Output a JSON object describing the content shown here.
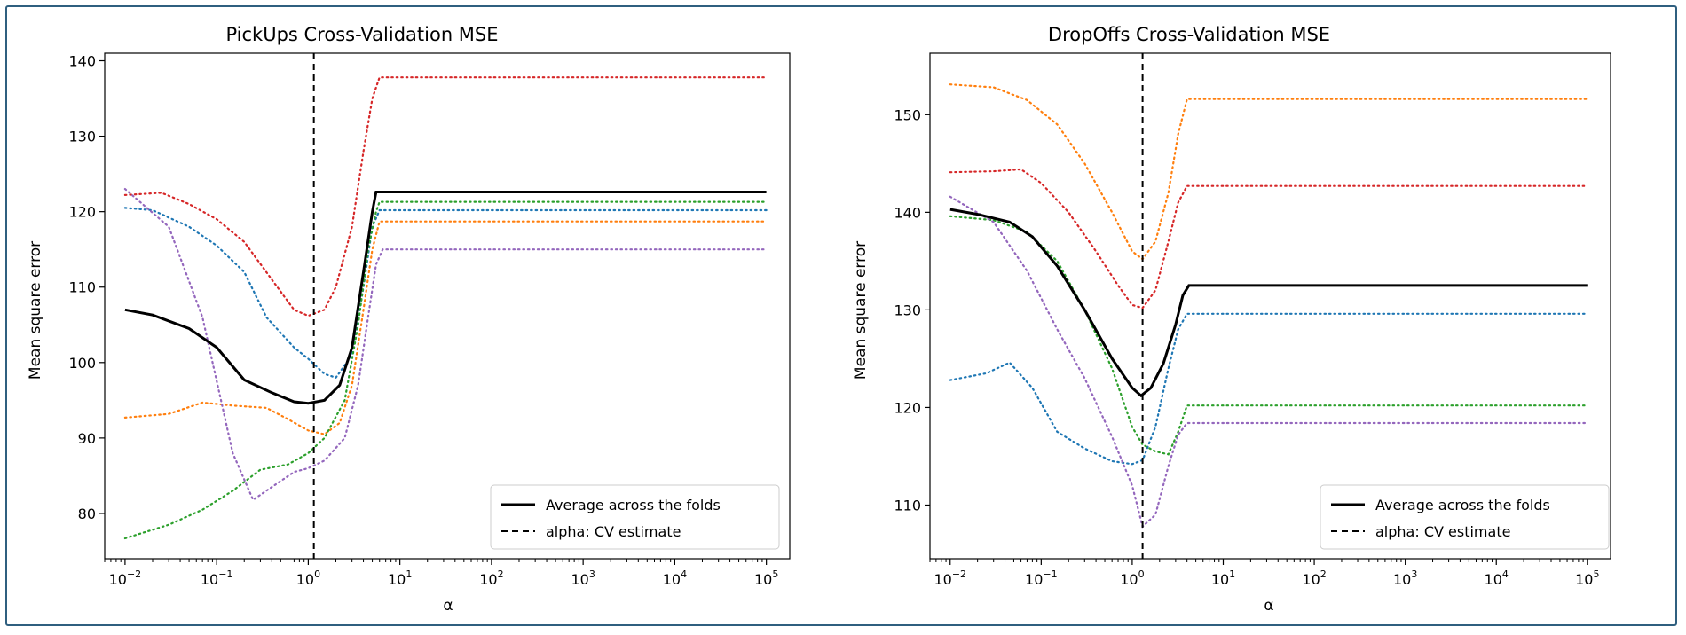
{
  "chart_data": [
    {
      "type": "line",
      "title": "PickUps Cross-Validation MSE",
      "xlabel": "α",
      "ylabel": "Mean square error",
      "xscale": "log",
      "xlim": [
        0.006,
        180000
      ],
      "ylim": [
        74,
        141
      ],
      "xticks": [
        {
          "base": "10",
          "exp": "−2",
          "value": 0.01
        },
        {
          "base": "10",
          "exp": "−1",
          "value": 0.1
        },
        {
          "base": "10",
          "exp": "0",
          "value": 1
        },
        {
          "base": "10",
          "exp": "1",
          "value": 10
        },
        {
          "base": "10",
          "exp": "2",
          "value": 100
        },
        {
          "base": "10",
          "exp": "3",
          "value": 1000
        },
        {
          "base": "10",
          "exp": "4",
          "value": 10000
        },
        {
          "base": "10",
          "exp": "5",
          "value": 100000
        }
      ],
      "yticks": [
        80,
        90,
        100,
        110,
        120,
        130,
        140
      ],
      "grid": false,
      "legend_position": "bottom-right",
      "legend": [
        "Average across the folds",
        "alpha: CV estimate"
      ],
      "cv_alpha": 1.15,
      "average": {
        "color": "#000000",
        "points": [
          [
            0.01,
            107
          ],
          [
            0.02,
            106.3
          ],
          [
            0.05,
            104.5
          ],
          [
            0.1,
            102
          ],
          [
            0.2,
            97.7
          ],
          [
            0.4,
            96.0
          ],
          [
            0.7,
            94.8
          ],
          [
            1,
            94.6
          ],
          [
            1.5,
            95.0
          ],
          [
            2.2,
            97.0
          ],
          [
            3,
            102
          ],
          [
            4,
            112
          ],
          [
            5,
            120
          ],
          [
            5.5,
            122.6
          ],
          [
            100000,
            122.6
          ]
        ]
      },
      "folds": [
        {
          "color": "#1f77b4",
          "points": [
            [
              0.01,
              120.5
            ],
            [
              0.02,
              120.2
            ],
            [
              0.05,
              118
            ],
            [
              0.1,
              115.5
            ],
            [
              0.2,
              112
            ],
            [
              0.35,
              106
            ],
            [
              0.7,
              102
            ],
            [
              1,
              100.5
            ],
            [
              1.5,
              98.5
            ],
            [
              2,
              98
            ],
            [
              3,
              101
            ],
            [
              4,
              110
            ],
            [
              5,
              118
            ],
            [
              6,
              120.2
            ],
            [
              100000,
              120.2
            ]
          ]
        },
        {
          "color": "#ff7f0e",
          "points": [
            [
              0.01,
              92.7
            ],
            [
              0.03,
              93.2
            ],
            [
              0.07,
              94.7
            ],
            [
              0.15,
              94.3
            ],
            [
              0.35,
              94.0
            ],
            [
              0.6,
              92.5
            ],
            [
              1,
              91.0
            ],
            [
              1.5,
              90.5
            ],
            [
              2.2,
              92
            ],
            [
              3,
              97
            ],
            [
              4,
              107
            ],
            [
              5,
              115
            ],
            [
              6,
              118.7
            ],
            [
              100000,
              118.7
            ]
          ]
        },
        {
          "color": "#2ca02c",
          "points": [
            [
              0.01,
              76.7
            ],
            [
              0.03,
              78.5
            ],
            [
              0.07,
              80.5
            ],
            [
              0.15,
              83
            ],
            [
              0.3,
              85.8
            ],
            [
              0.6,
              86.5
            ],
            [
              1,
              88
            ],
            [
              1.5,
              90
            ],
            [
              2.5,
              95
            ],
            [
              3.5,
              105
            ],
            [
              4.5,
              115
            ],
            [
              5.5,
              120
            ],
            [
              6,
              121.3
            ],
            [
              100000,
              121.3
            ]
          ]
        },
        {
          "color": "#d62728",
          "points": [
            [
              0.01,
              122.2
            ],
            [
              0.025,
              122.5
            ],
            [
              0.05,
              121
            ],
            [
              0.1,
              119
            ],
            [
              0.2,
              116
            ],
            [
              0.4,
              111
            ],
            [
              0.7,
              107
            ],
            [
              1,
              106.2
            ],
            [
              1.5,
              107
            ],
            [
              2,
              110
            ],
            [
              3,
              118
            ],
            [
              4,
              128
            ],
            [
              5,
              135
            ],
            [
              6,
              137.8
            ],
            [
              100000,
              137.8
            ]
          ]
        },
        {
          "color": "#9467bd",
          "points": [
            [
              0.01,
              123
            ],
            [
              0.03,
              118
            ],
            [
              0.07,
              106
            ],
            [
              0.15,
              88
            ],
            [
              0.25,
              81.8
            ],
            [
              0.4,
              83.5
            ],
            [
              0.7,
              85.5
            ],
            [
              1,
              86
            ],
            [
              1.5,
              87
            ],
            [
              2.5,
              90
            ],
            [
              3.5,
              97
            ],
            [
              4.5,
              106
            ],
            [
              5.5,
              113
            ],
            [
              6.5,
              115
            ],
            [
              100000,
              115
            ]
          ]
        }
      ]
    },
    {
      "type": "line",
      "title": "DropOffs Cross-Validation MSE",
      "xlabel": "α",
      "ylabel": "Mean square error",
      "xscale": "log",
      "xlim": [
        0.006,
        180000
      ],
      "ylim": [
        104.5,
        156.3
      ],
      "xticks": [
        {
          "base": "10",
          "exp": "−2",
          "value": 0.01
        },
        {
          "base": "10",
          "exp": "−1",
          "value": 0.1
        },
        {
          "base": "10",
          "exp": "0",
          "value": 1
        },
        {
          "base": "10",
          "exp": "1",
          "value": 10
        },
        {
          "base": "10",
          "exp": "2",
          "value": 100
        },
        {
          "base": "10",
          "exp": "3",
          "value": 1000
        },
        {
          "base": "10",
          "exp": "4",
          "value": 10000
        },
        {
          "base": "10",
          "exp": "5",
          "value": 100000
        }
      ],
      "yticks": [
        110,
        120,
        130,
        140,
        150
      ],
      "grid": false,
      "legend_position": "bottom-right",
      "legend": [
        "Average across the folds",
        "alpha: CV estimate"
      ],
      "cv_alpha": 1.3,
      "average": {
        "color": "#000000",
        "points": [
          [
            0.01,
            140.3
          ],
          [
            0.02,
            139.8
          ],
          [
            0.045,
            139.0
          ],
          [
            0.08,
            137.5
          ],
          [
            0.15,
            134.5
          ],
          [
            0.3,
            130
          ],
          [
            0.6,
            125
          ],
          [
            1,
            122
          ],
          [
            1.25,
            121.2
          ],
          [
            1.6,
            122
          ],
          [
            2.2,
            124.5
          ],
          [
            3,
            128.5
          ],
          [
            3.6,
            131.5
          ],
          [
            4.2,
            132.5
          ],
          [
            100000,
            132.5
          ]
        ]
      },
      "folds": [
        {
          "color": "#1f77b4",
          "points": [
            [
              0.01,
              122.8
            ],
            [
              0.025,
              123.5
            ],
            [
              0.045,
              124.6
            ],
            [
              0.08,
              122
            ],
            [
              0.15,
              117.5
            ],
            [
              0.3,
              115.8
            ],
            [
              0.6,
              114.5
            ],
            [
              1,
              114.2
            ],
            [
              1.3,
              114.6
            ],
            [
              1.8,
              118
            ],
            [
              2.5,
              124
            ],
            [
              3.2,
              128
            ],
            [
              4,
              129.6
            ],
            [
              100000,
              129.6
            ]
          ]
        },
        {
          "color": "#ff7f0e",
          "points": [
            [
              0.01,
              153.1
            ],
            [
              0.03,
              152.8
            ],
            [
              0.07,
              151.5
            ],
            [
              0.15,
              149
            ],
            [
              0.3,
              145
            ],
            [
              0.6,
              140
            ],
            [
              1,
              136
            ],
            [
              1.3,
              135.2
            ],
            [
              1.8,
              137
            ],
            [
              2.5,
              142
            ],
            [
              3.2,
              148
            ],
            [
              4,
              151.6
            ],
            [
              100000,
              151.6
            ]
          ]
        },
        {
          "color": "#2ca02c",
          "points": [
            [
              0.01,
              139.6
            ],
            [
              0.03,
              139.2
            ],
            [
              0.07,
              138
            ],
            [
              0.15,
              135
            ],
            [
              0.3,
              130
            ],
            [
              0.6,
              124
            ],
            [
              1,
              118
            ],
            [
              1.3,
              116.2
            ],
            [
              1.8,
              115.5
            ],
            [
              2.5,
              115.2
            ],
            [
              3.2,
              117.5
            ],
            [
              4,
              120.2
            ],
            [
              100000,
              120.2
            ]
          ]
        },
        {
          "color": "#d62728",
          "points": [
            [
              0.01,
              144.1
            ],
            [
              0.03,
              144.2
            ],
            [
              0.06,
              144.4
            ],
            [
              0.1,
              143
            ],
            [
              0.2,
              140
            ],
            [
              0.4,
              136
            ],
            [
              0.7,
              132.5
            ],
            [
              1,
              130.5
            ],
            [
              1.3,
              130.2
            ],
            [
              1.8,
              132
            ],
            [
              2.5,
              137
            ],
            [
              3.2,
              141
            ],
            [
              4,
              142.7
            ],
            [
              100000,
              142.7
            ]
          ]
        },
        {
          "color": "#9467bd",
          "points": [
            [
              0.01,
              141.6
            ],
            [
              0.03,
              139
            ],
            [
              0.07,
              134
            ],
            [
              0.15,
              128
            ],
            [
              0.3,
              123
            ],
            [
              0.6,
              117
            ],
            [
              1,
              112
            ],
            [
              1.3,
              107.8
            ],
            [
              1.8,
              109
            ],
            [
              2.5,
              114
            ],
            [
              3.2,
              117.2
            ],
            [
              4,
              118.4
            ],
            [
              100000,
              118.4
            ]
          ]
        }
      ]
    }
  ]
}
